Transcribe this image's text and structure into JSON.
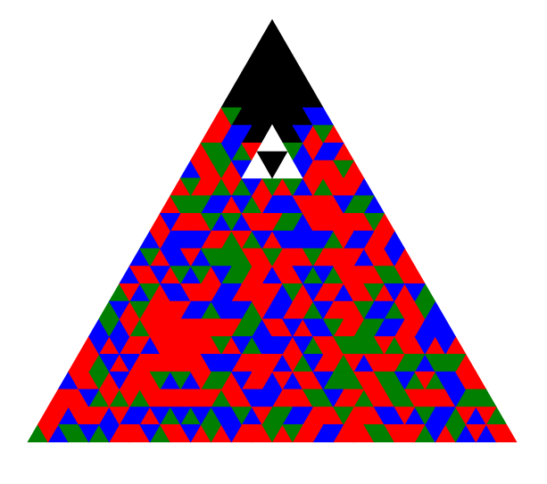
{
  "figure": {
    "description_kind": "triangular tiling",
    "grid_rows": 24,
    "palette": {
      "black": "#000000",
      "white": "#ffffff",
      "red": "#ff0000",
      "green": "#007f00",
      "blue": "#0000ff"
    },
    "random_colors": [
      "red",
      "green",
      "blue"
    ],
    "color_weights": [
      0.46,
      0.26,
      0.28
    ],
    "black_region_rows": 4,
    "seed": 7
  }
}
